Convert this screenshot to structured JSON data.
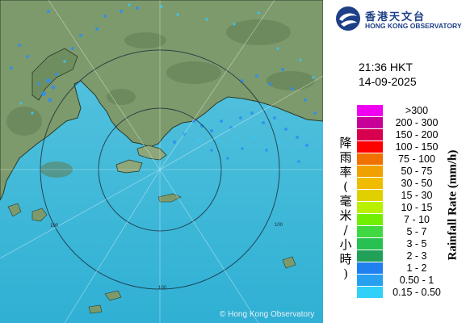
{
  "map": {
    "copyright": "© Hong Kong Observatory",
    "range_ring_label": "100"
  },
  "logo": {
    "chinese": "香港天文台",
    "english": "HONG KONG OBSERVATORY",
    "icon": "hko-logo-icon"
  },
  "timestamp": {
    "time": "21:36 HKT",
    "date": "14-09-2025"
  },
  "legend": {
    "title_chinese": [
      "降",
      "雨",
      "率",
      "(",
      "毫",
      "米",
      "/",
      "小",
      "時",
      ")"
    ],
    "title_english": "Rainfall Rate (mm/h)",
    "items": [
      {
        "label": ">300",
        "color": "#f000f0"
      },
      {
        "label": "200 - 300",
        "color": "#c8009a"
      },
      {
        "label": "150 - 200",
        "color": "#d8004e"
      },
      {
        "label": "100 - 150",
        "color": "#ff0000"
      },
      {
        "label": "75 - 100",
        "color": "#f07000"
      },
      {
        "label": "50 - 75",
        "color": "#f0a000"
      },
      {
        "label": "30 - 50",
        "color": "#f0bc00"
      },
      {
        "label": "15 - 30",
        "color": "#e0d000"
      },
      {
        "label": "10 - 15",
        "color": "#b8f000"
      },
      {
        "label": "7 - 10",
        "color": "#70f000"
      },
      {
        "label": "5 - 7",
        "color": "#40d840"
      },
      {
        "label": "3 - 5",
        "color": "#28c050"
      },
      {
        "label": "2 - 3",
        "color": "#20a058"
      },
      {
        "label": "1 - 2",
        "color": "#2080f0"
      },
      {
        "label": "0.50 - 1",
        "color": "#28a0f0"
      },
      {
        "label": "0.15 - 0.50",
        "color": "#30d0f8"
      }
    ]
  }
}
